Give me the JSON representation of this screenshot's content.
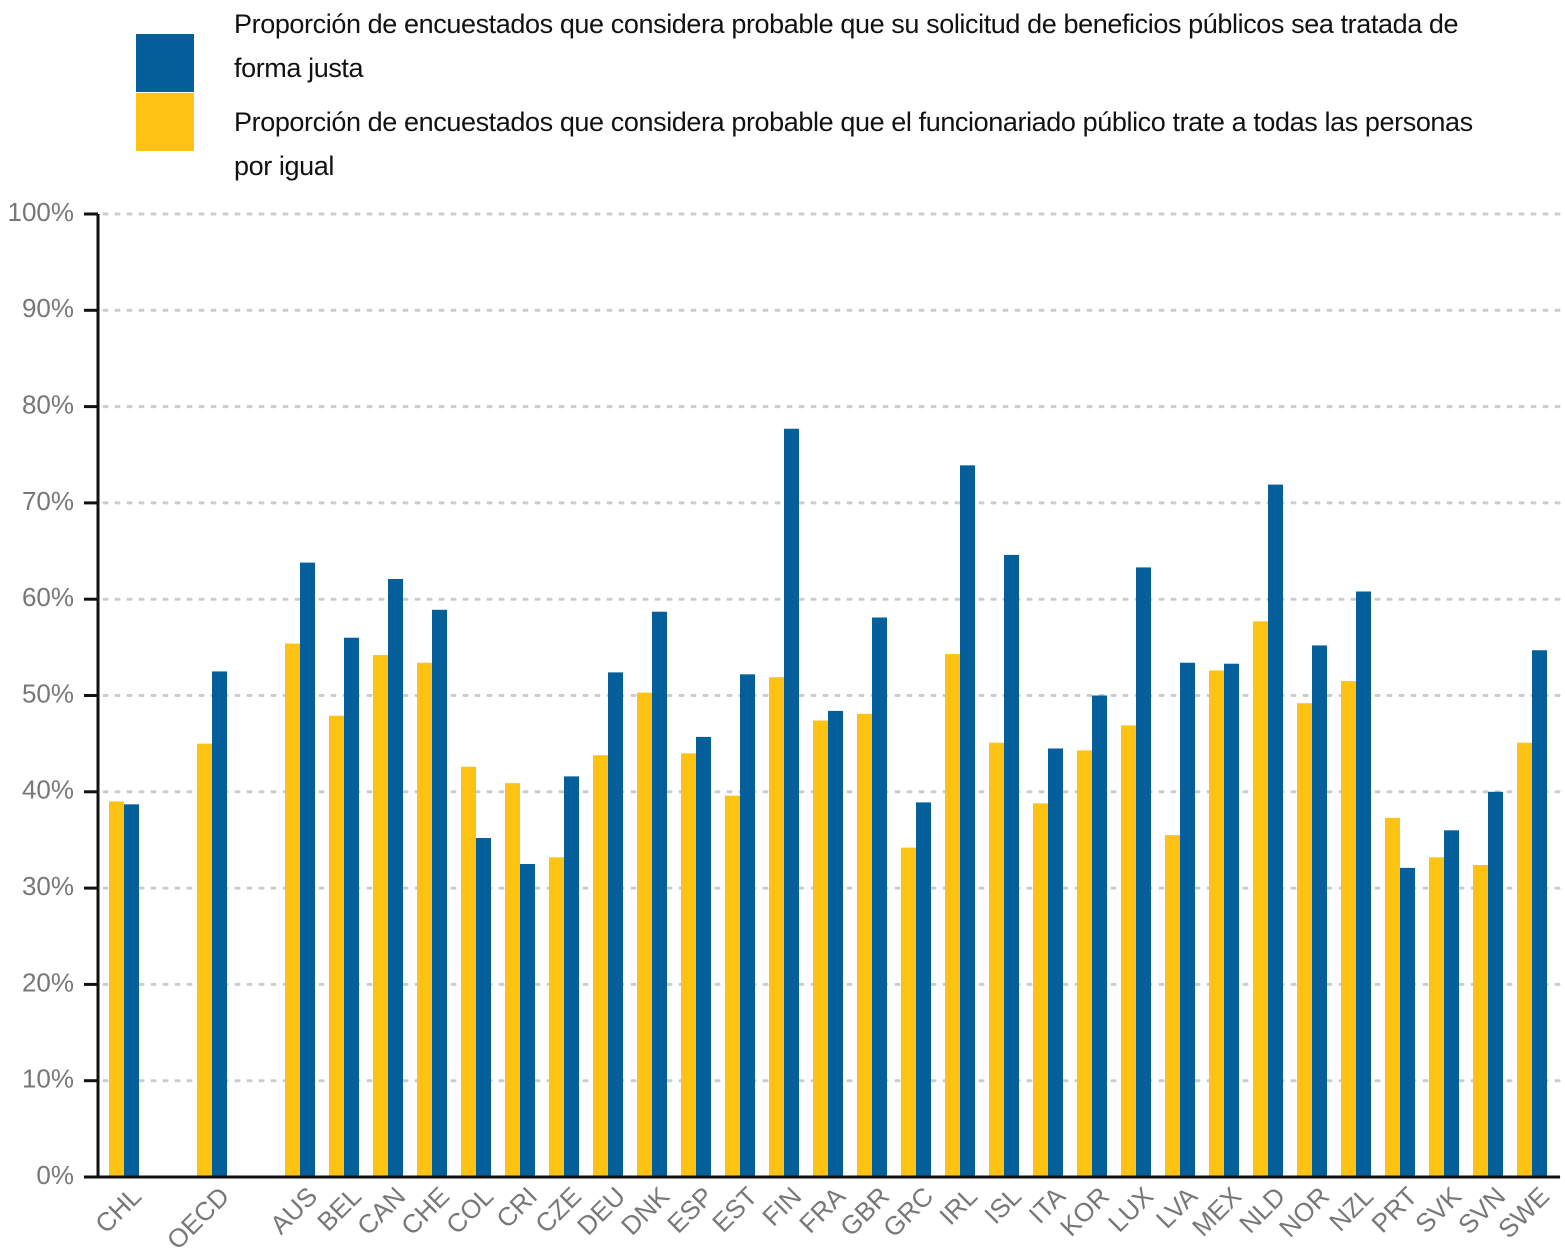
{
  "chart_data": {
    "type": "bar",
    "categories": [
      "CHL",
      null,
      "OECD",
      null,
      "AUS",
      "BEL",
      "CAN",
      "CHE",
      "COL",
      "CRI",
      "CZE",
      "DEU",
      "DNK",
      "ESP",
      "EST",
      "FIN",
      "FRA",
      "GBR",
      "GRC",
      "IRL",
      "ISL",
      "ITA",
      "KOR",
      "LUX",
      "LVA",
      "MEX",
      "NLD",
      "NOR",
      "NZL",
      "PRT",
      "SVK",
      "SVN",
      "SWE"
    ],
    "series": [
      {
        "name": "Proporción de encuestados que considera probable que su solicitud de beneficios públicos sea tratada de forma justa",
        "color": "#045f9b",
        "values": [
          38.7,
          null,
          52.5,
          null,
          63.8,
          56.0,
          62.1,
          58.9,
          35.2,
          32.5,
          41.6,
          52.4,
          58.7,
          45.7,
          52.2,
          77.7,
          48.4,
          58.1,
          38.9,
          73.9,
          64.6,
          44.5,
          50.0,
          63.3,
          53.4,
          53.3,
          71.9,
          55.2,
          60.8,
          32.1,
          36.0,
          40.0,
          54.7
        ]
      },
      {
        "name": "Proporción de encuestados que considera probable que el funcionariado público trate a todas las personas por igual",
        "color": "#fec312",
        "values": [
          39.0,
          null,
          45.0,
          null,
          55.4,
          47.9,
          54.2,
          53.4,
          42.6,
          40.9,
          33.2,
          43.8,
          50.3,
          44.0,
          39.6,
          51.9,
          47.4,
          48.1,
          34.2,
          54.3,
          45.1,
          38.8,
          44.3,
          46.9,
          35.5,
          52.6,
          57.7,
          49.2,
          51.5,
          37.3,
          33.2,
          32.4,
          45.1
        ]
      }
    ],
    "ylim": [
      0,
      100
    ],
    "yticks": [
      {
        "value": 0,
        "label": "0%"
      },
      {
        "value": 10,
        "label": "10%"
      },
      {
        "value": 20,
        "label": "20%"
      },
      {
        "value": 30,
        "label": "30%"
      },
      {
        "value": 40,
        "label": "40%"
      },
      {
        "value": 50,
        "label": "50%"
      },
      {
        "value": 60,
        "label": "60%"
      },
      {
        "value": 70,
        "label": "70%"
      },
      {
        "value": 80,
        "label": "80%"
      },
      {
        "value": 90,
        "label": "90%"
      },
      {
        "value": 100,
        "label": "100%"
      }
    ],
    "grid": true
  }
}
